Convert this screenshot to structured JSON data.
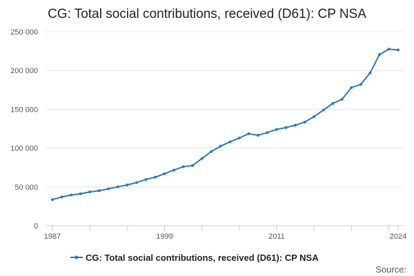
{
  "chart_data": {
    "type": "line",
    "title": "CG: Total social contributions, received (D61): CP NSA",
    "xlabel": "",
    "ylabel": "",
    "x_tick_labels": [
      "1987",
      "1999",
      "2011",
      "2024"
    ],
    "y_tick_labels": [
      "0",
      "50 000",
      "100 000",
      "150 000",
      "200 000",
      "250 000"
    ],
    "y_ticks": [
      0,
      50000,
      100000,
      150000,
      200000,
      250000
    ],
    "ylim": [
      0,
      250000
    ],
    "xlim": [
      1987,
      2024
    ],
    "grid": true,
    "legend_position": "bottom",
    "series": [
      {
        "name": "CG: Total social contributions, received (D61): CP NSA",
        "color": "#2a7ab8",
        "x": [
          1987,
          1988,
          1989,
          1990,
          1991,
          1992,
          1993,
          1994,
          1995,
          1996,
          1997,
          1998,
          1999,
          2000,
          2001,
          2002,
          2003,
          2004,
          2005,
          2006,
          2007,
          2008,
          2009,
          2010,
          2011,
          2012,
          2013,
          2014,
          2015,
          2016,
          2017,
          2018,
          2019,
          2020,
          2021,
          2022,
          2023,
          2024
        ],
        "values": [
          33500,
          37000,
          39500,
          41000,
          43500,
          45000,
          47500,
          50000,
          52500,
          55500,
          59500,
          62500,
          67000,
          71500,
          76000,
          77500,
          86500,
          95500,
          102500,
          108000,
          113000,
          118500,
          116500,
          120000,
          124000,
          126500,
          129500,
          133500,
          140500,
          149000,
          157500,
          163000,
          178000,
          182000,
          197000,
          220500,
          227500,
          226500
        ]
      }
    ]
  },
  "footer": {
    "source_label": "Source:"
  }
}
